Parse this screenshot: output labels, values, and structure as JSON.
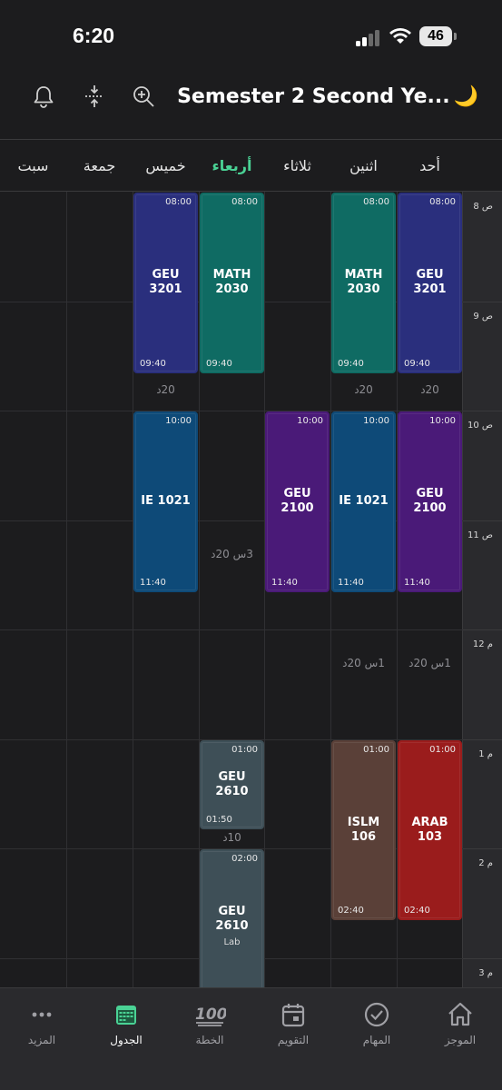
{
  "status_bar": {
    "time": "6:20",
    "battery": "46"
  },
  "header": {
    "title": "Semester 2 Second Ye...",
    "icons": [
      "bell-icon",
      "compress-icon",
      "zoom-in-icon",
      "moon-icon"
    ]
  },
  "days": [
    "أحد",
    "اثنين",
    "ثلاثاء",
    "أربعاء",
    "خميس",
    "جمعة",
    "سبت"
  ],
  "active_day": "أربعاء",
  "time_labels": [
    "8 ص",
    "9 ص",
    "10 ص",
    "11 ص",
    "12 م",
    "1 م",
    "2 م",
    "3 م"
  ],
  "events": [
    {
      "name": "GEU\n3201",
      "start": "08:00",
      "end": "09:40",
      "day": 0,
      "color": "#2a2f7d"
    },
    {
      "name": "MATH\n2030",
      "start": "08:00",
      "end": "09:40",
      "day": 1,
      "color": "#0f6b63"
    },
    {
      "name": "MATH\n2030",
      "start": "08:00",
      "end": "09:40",
      "day": 3,
      "color": "#0f6b63"
    },
    {
      "name": "GEU\n3201",
      "start": "08:00",
      "end": "09:40",
      "day": 4,
      "color": "#2a2f7d"
    },
    {
      "name": "GEU\n2100",
      "start": "10:00",
      "end": "11:40",
      "day": 0,
      "color": "#4a1a78"
    },
    {
      "name": "IE 1021",
      "start": "10:00",
      "end": "11:40",
      "day": 1,
      "color": "#0e4a78"
    },
    {
      "name": "GEU\n2100",
      "start": "10:00",
      "end": "11:40",
      "day": 2,
      "color": "#4a1a78"
    },
    {
      "name": "IE 1021",
      "start": "10:00",
      "end": "11:40",
      "day": 4,
      "color": "#0e4a78"
    },
    {
      "name": "ARAB\n103",
      "start": "01:00",
      "end": "02:40",
      "day": 0,
      "color": "#9a1c1c"
    },
    {
      "name": "ISLM 106",
      "start": "01:00",
      "end": "02:40",
      "day": 1,
      "color": "#5a4038"
    },
    {
      "name": "GEU\n2610",
      "start": "01:00",
      "end": "01:50",
      "day": 3,
      "color": "#3e4f57"
    },
    {
      "name": "GEU\n2610",
      "sub": "Lab",
      "start": "02:00",
      "end": "",
      "day": 3,
      "color": "#3e4f57"
    }
  ],
  "gaps": [
    {
      "text": "20د",
      "day": 0,
      "row": "a"
    },
    {
      "text": "20د",
      "day": 1,
      "row": "a"
    },
    {
      "text": "20د",
      "day": 4,
      "row": "a"
    },
    {
      "text": "3س 20د",
      "day": 3,
      "row": "b"
    },
    {
      "text": "1س 20د",
      "day": 0,
      "row": "c"
    },
    {
      "text": "1س 20د",
      "day": 1,
      "row": "c"
    },
    {
      "text": "10د",
      "day": 3,
      "row": "d"
    }
  ],
  "nav": [
    {
      "label": "الموجز",
      "icon": "home-icon"
    },
    {
      "label": "المهام",
      "icon": "check-circle-icon"
    },
    {
      "label": "التقويم",
      "icon": "calendar-icon"
    },
    {
      "label": "الخطة",
      "icon": "hundred-icon"
    },
    {
      "label": "الجدول",
      "icon": "schedule-icon",
      "active": true
    },
    {
      "label": "المزيد",
      "icon": "more-icon"
    }
  ]
}
